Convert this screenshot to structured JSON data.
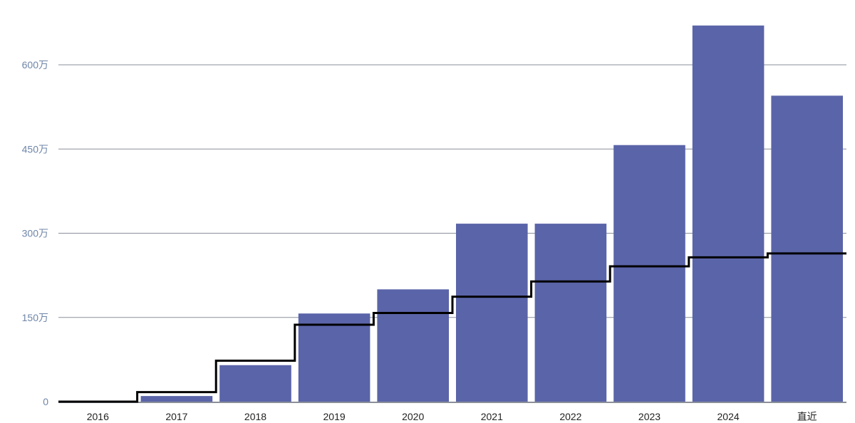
{
  "chart_data": {
    "type": "bar",
    "categories": [
      "2016",
      "2017",
      "2018",
      "2019",
      "2020",
      "2021",
      "2022",
      "2023",
      "2024",
      "直近"
    ],
    "series": [
      {
        "type": "bar",
        "values": [
          0,
          10,
          65,
          157,
          200,
          317,
          317,
          457,
          670,
          545
        ]
      },
      {
        "type": "step-line",
        "values": [
          0,
          17,
          73,
          137,
          158,
          187,
          214,
          241,
          257,
          264
        ]
      }
    ],
    "y_ticks": [
      {
        "value": 0,
        "label": "0"
      },
      {
        "value": 150,
        "label": "150万"
      },
      {
        "value": 300,
        "label": "300万"
      },
      {
        "value": 450,
        "label": "450万"
      },
      {
        "value": 600,
        "label": "600万"
      }
    ],
    "ylim": [
      0,
      690
    ],
    "y_unit": "万",
    "grid": true,
    "legend": "none",
    "colors": {
      "bar": "#5a64a8",
      "line": "#000000",
      "grid": "#8a8f99",
      "y_tick": "#6f86a8",
      "x_tick": "#222222"
    }
  }
}
